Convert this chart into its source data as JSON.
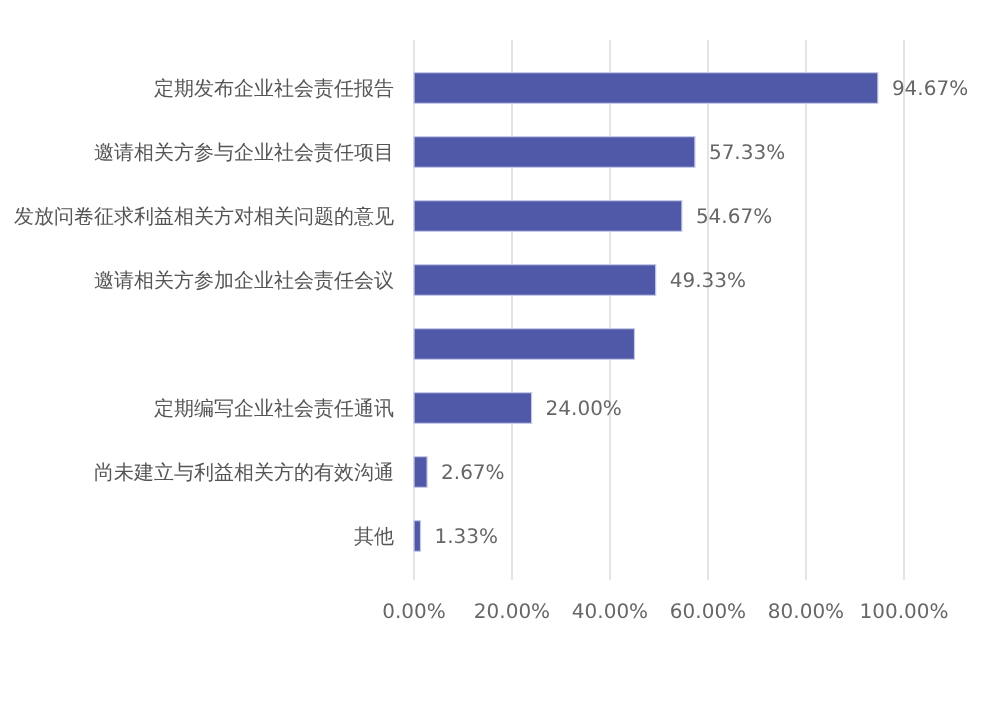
{
  "chart_data": {
    "type": "bar",
    "orientation": "horizontal",
    "categories": [
      "定期发布企业社会责任报告",
      "邀请相关方参与企业社会责任项目",
      "发放问卷征求利益相关方对相关问题的意见",
      "邀请相关方参加企业社会责任会议",
      null,
      "定期编写企业社会责任通讯",
      "尚未建立与利益相关方的有效沟通",
      "其他"
    ],
    "values": [
      94.67,
      57.33,
      54.67,
      49.33,
      45,
      24.0,
      2.67,
      1.33
    ],
    "value_labels": [
      "94.67%",
      "57.33%",
      "54.67%",
      "49.33%",
      null,
      "24.00%",
      "2.67%",
      "1.33%"
    ],
    "color": "#5058a8",
    "xlim": [
      0,
      100
    ],
    "xticks": [
      {
        "value": 0,
        "label": "0.00%"
      },
      {
        "value": 20,
        "label": "20.00%"
      },
      {
        "value": 40,
        "label": "40.00%"
      },
      {
        "value": 60,
        "label": "60.00%"
      },
      {
        "value": 80,
        "label": "80.00%"
      },
      {
        "value": 100,
        "label": "100.00%"
      }
    ],
    "grid": "x"
  }
}
